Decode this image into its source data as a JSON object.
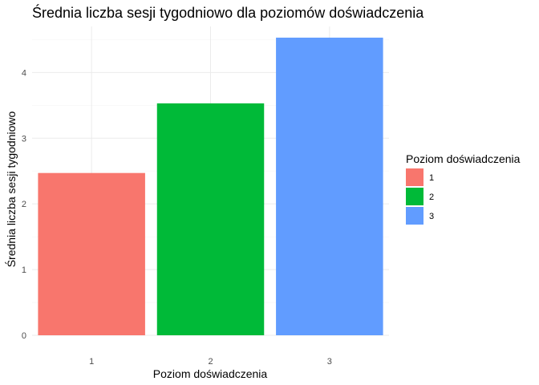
{
  "chart_data": {
    "type": "bar",
    "title": "Średnia liczba sesji tygodniowo dla poziomów doświadczenia",
    "xlabel": "Poziom doświadczenia",
    "ylabel": "Średnia liczba sesji tygodniowo",
    "categories": [
      "1",
      "2",
      "3"
    ],
    "values": [
      2.47,
      3.53,
      4.53
    ],
    "colors": [
      "#F8766D",
      "#00BA38",
      "#619CFF"
    ],
    "ylim": [
      0,
      4.7
    ],
    "yticks": [
      0,
      1,
      2,
      3,
      4
    ],
    "grid": true,
    "legend": {
      "title": "Poziom doświadczenia",
      "placement": "right",
      "entries": [
        "1",
        "2",
        "3"
      ]
    }
  }
}
